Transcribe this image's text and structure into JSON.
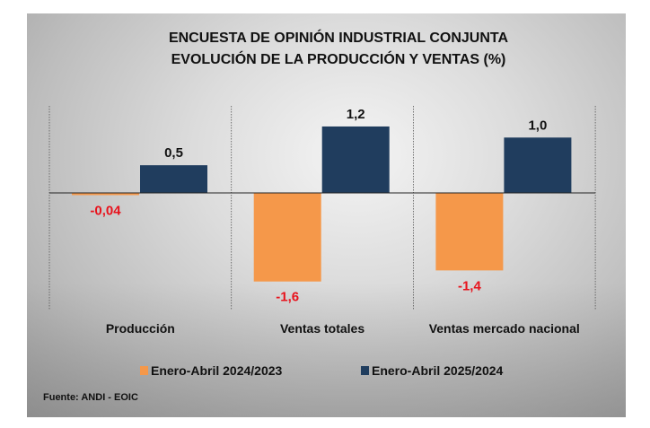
{
  "chart_data": {
    "type": "bar",
    "title": [
      "ENCUESTA DE OPINIÓN INDUSTRIAL CONJUNTA",
      "EVOLUCIÓN DE LA PRODUCCIÓN Y VENTAS (%)"
    ],
    "categories": [
      "Producción",
      "Ventas totales",
      "Ventas mercado nacional"
    ],
    "series": [
      {
        "name": "Enero-Abril 2024/2023",
        "values": [
          -0.04,
          -1.6,
          -1.4
        ],
        "labels": [
          "-0,04",
          "-1,6",
          "-1,4"
        ],
        "color": "#f5984a",
        "label_color": "#e8121c"
      },
      {
        "name": "Enero-Abril 2025/2024",
        "values": [
          0.5,
          1.2,
          1.0
        ],
        "labels": [
          "0,5",
          "1,2",
          "1,0"
        ],
        "color": "#203d5e",
        "label_color": "#111111"
      }
    ],
    "legend": "bottom",
    "grid": false,
    "source": "Fuente: ANDI - EOIC"
  }
}
